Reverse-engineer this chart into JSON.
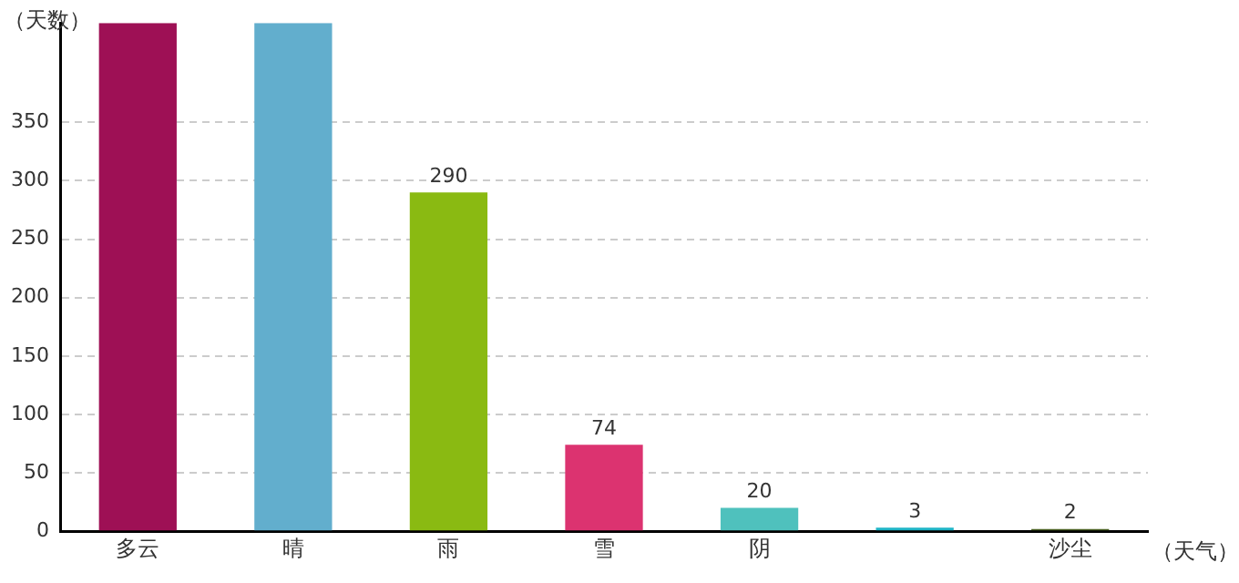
{
  "chart_data": {
    "type": "bar",
    "xlabel": "（天气）",
    "ylabel": "（天数）",
    "categories": [
      "多云",
      "晴",
      "雨",
      "雪",
      "阴",
      null,
      "沙尘"
    ],
    "values": [
      435,
      435,
      290,
      74,
      20,
      3,
      2
    ],
    "colors": [
      "#9e1055",
      "#62aecd",
      "#8aba12",
      "#dc3370",
      "#4fc1bd",
      "#1eb4c6",
      "#4a6022"
    ],
    "value_labels": [
      null,
      null,
      "290",
      "74",
      "20",
      "3",
      "2"
    ],
    "ylim": [
      0,
      435
    ],
    "yticks": [
      0,
      50,
      100,
      150,
      200,
      250,
      300,
      350
    ],
    "grid": "y",
    "legend": false
  }
}
